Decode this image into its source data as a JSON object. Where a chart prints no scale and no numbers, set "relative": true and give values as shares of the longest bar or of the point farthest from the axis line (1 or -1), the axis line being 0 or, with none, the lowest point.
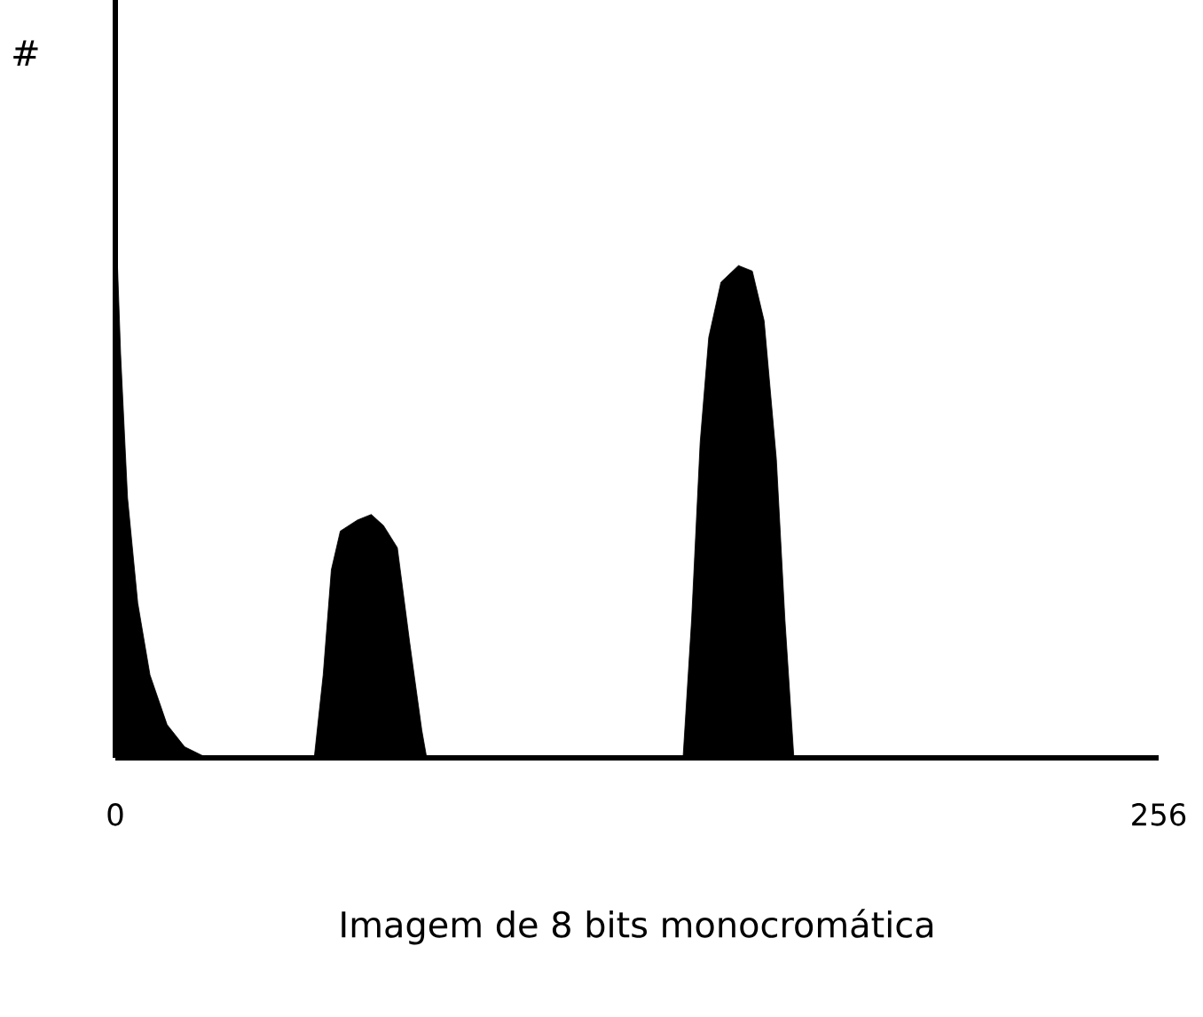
{
  "chart_data": {
    "type": "area",
    "relative": true,
    "ylabel": "#",
    "xlabel": "Imagem de 8 bits monocromática",
    "color": "#000000",
    "xlim": [
      0,
      256
    ],
    "xticks": [
      0,
      256
    ],
    "x": [
      0,
      1.3,
      3,
      5.5,
      8.5,
      12.7,
      17,
      22.5,
      48.8,
      51,
      53,
      55.2,
      59.4,
      62.8,
      65.8,
      69.2,
      72.2,
      75.2,
      76.4,
      139.3,
      141.4,
      143.5,
      145.6,
      148.6,
      152.9,
      156.3,
      159.2,
      162.2,
      164.3,
      166.5,
      256
    ],
    "values": [
      1.0,
      0.73,
      0.47,
      0.28,
      0.15,
      0.06,
      0.02,
      0,
      0,
      0.15,
      0.34,
      0.41,
      0.43,
      0.44,
      0.42,
      0.38,
      0.21,
      0.05,
      0,
      0,
      0.25,
      0.57,
      0.76,
      0.86,
      0.89,
      0.88,
      0.79,
      0.54,
      0.25,
      0,
      0
    ]
  }
}
